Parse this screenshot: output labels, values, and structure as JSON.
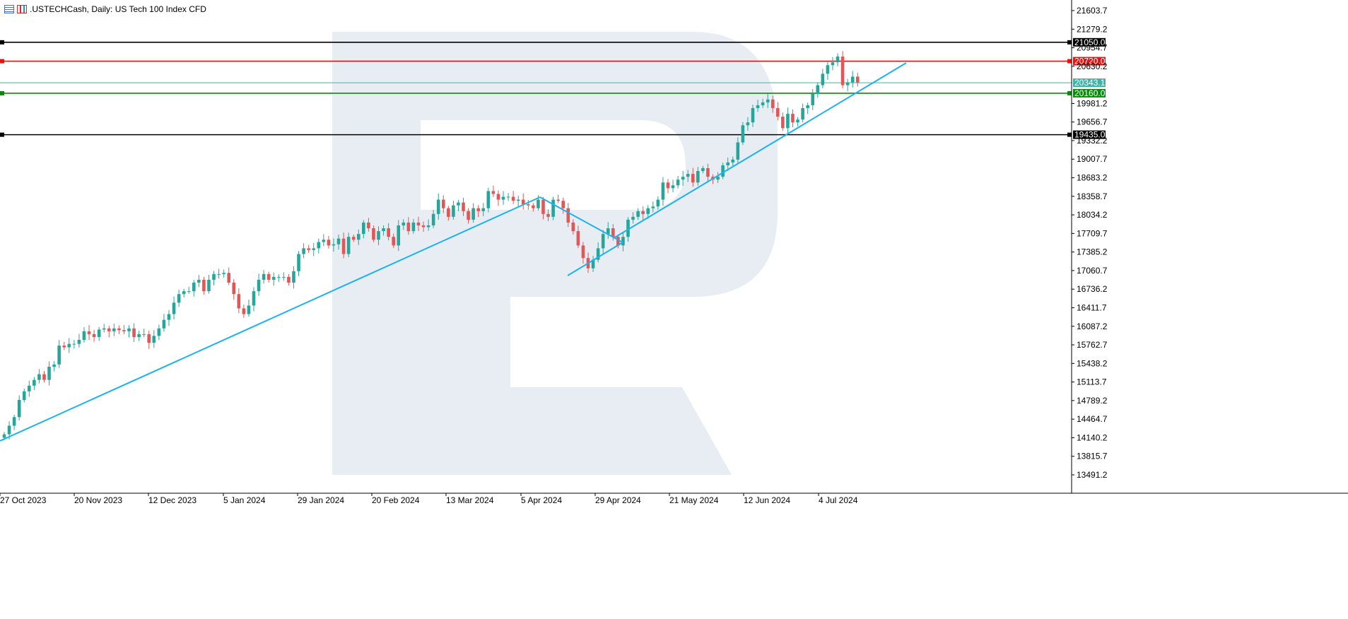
{
  "header": {
    "table_icon": "table-icon",
    "candles_icon": "candlestick-icon",
    "title": ".USTECHCash, Daily:  US Tech 100 Index CFD"
  },
  "colors": {
    "bull": "#26a69a",
    "bear": "#e05757",
    "trendline": "#1ab3ef",
    "resistance_red": "#e01515",
    "support_green": "#0a8a0a",
    "level_black": "#000000",
    "current_price": "#3cb4a8",
    "watermark": "#e8edf4"
  },
  "chart_data": {
    "type": "candlestick",
    "title": ".USTECHCash, Daily:  US Tech 100 Index CFD",
    "y_axis_ticks": [
      "21603.7",
      "21279.2",
      "20954.7",
      "20630.2",
      "19981.2",
      "19656.7",
      "19332.2",
      "19007.7",
      "18683.2",
      "18358.7",
      "18034.2",
      "17709.7",
      "17385.2",
      "17060.7",
      "16736.2",
      "16411.7",
      "16087.2",
      "15762.7",
      "15438.2",
      "15113.7",
      "14789.2",
      "14464.7",
      "14140.2",
      "13815.7",
      "13491.2"
    ],
    "x_axis_labels": [
      "27 Oct 2023",
      "20 Nov 2023",
      "12 Dec 2023",
      "5 Jan 2024",
      "29 Jan 2024",
      "20 Feb 2024",
      "13 Mar 2024",
      "5 Apr 2024",
      "29 Apr 2024",
      "21 May 2024",
      "12 Jun 2024",
      "4 Jul 2024"
    ],
    "ylim": [
      13400,
      21780
    ],
    "levels": [
      {
        "label": "21050.0",
        "value": 21050.0,
        "color": "#000000"
      },
      {
        "label": "20720.0",
        "value": 20720.0,
        "color": "#e01515"
      },
      {
        "label": "20343.1",
        "value": 20343.1,
        "color": "#3cb4a8"
      },
      {
        "label": "20160.0",
        "value": 20160.0,
        "color": "#0a8a0a"
      },
      {
        "label": "19435.0",
        "value": 19435.0,
        "color": "#000000"
      }
    ],
    "closes": [
      14200,
      14350,
      14500,
      14800,
      14950,
      15050,
      15150,
      15250,
      15150,
      15380,
      15420,
      15750,
      15720,
      15780,
      15780,
      15850,
      16000,
      15950,
      15900,
      16030,
      16050,
      16000,
      16050,
      16020,
      16000,
      16050,
      15900,
      15950,
      15950,
      15800,
      15920,
      16050,
      16200,
      16300,
      16500,
      16650,
      16700,
      16700,
      16850,
      16900,
      16700,
      16900,
      17000,
      17000,
      17020,
      16850,
      16650,
      16400,
      16300,
      16450,
      16700,
      16900,
      17000,
      16900,
      16950,
      16950,
      16950,
      16850,
      17050,
      17350,
      17450,
      17420,
      17450,
      17560,
      17600,
      17500,
      17520,
      17620,
      17350,
      17650,
      17600,
      17700,
      17900,
      17800,
      17600,
      17750,
      17800,
      17650,
      17500,
      17850,
      17900,
      17750,
      17900,
      17850,
      17820,
      17850,
      18050,
      18300,
      18150,
      18000,
      18200,
      18250,
      18100,
      17950,
      18150,
      18100,
      18150,
      18450,
      18400,
      18300,
      18350,
      18350,
      18280,
      18300,
      18220,
      18200,
      18150,
      18300,
      18050,
      18000,
      18300,
      18280,
      18150,
      17900,
      17750,
      17500,
      17280,
      17100,
      17250,
      17450,
      17700,
      17800,
      17650,
      17500,
      17650,
      17950,
      18000,
      18100,
      18050,
      18150,
      18180,
      18300,
      18600,
      18500,
      18550,
      18650,
      18700,
      18750,
      18600,
      18800,
      18850,
      18700,
      18650,
      18700,
      18900,
      18950,
      19000,
      19300,
      19600,
      19650,
      19900,
      19950,
      20000,
      20050,
      19900,
      19750,
      19550,
      19800,
      19650,
      19700,
      19900,
      19950,
      20150,
      20300,
      20500,
      20650,
      20700,
      20800,
      20300,
      20350,
      20450,
      20350
    ],
    "trendlines": [
      {
        "name": "long-term support trendline"
      },
      {
        "name": "falling channel top"
      },
      {
        "name": "rising support trendline"
      }
    ]
  }
}
